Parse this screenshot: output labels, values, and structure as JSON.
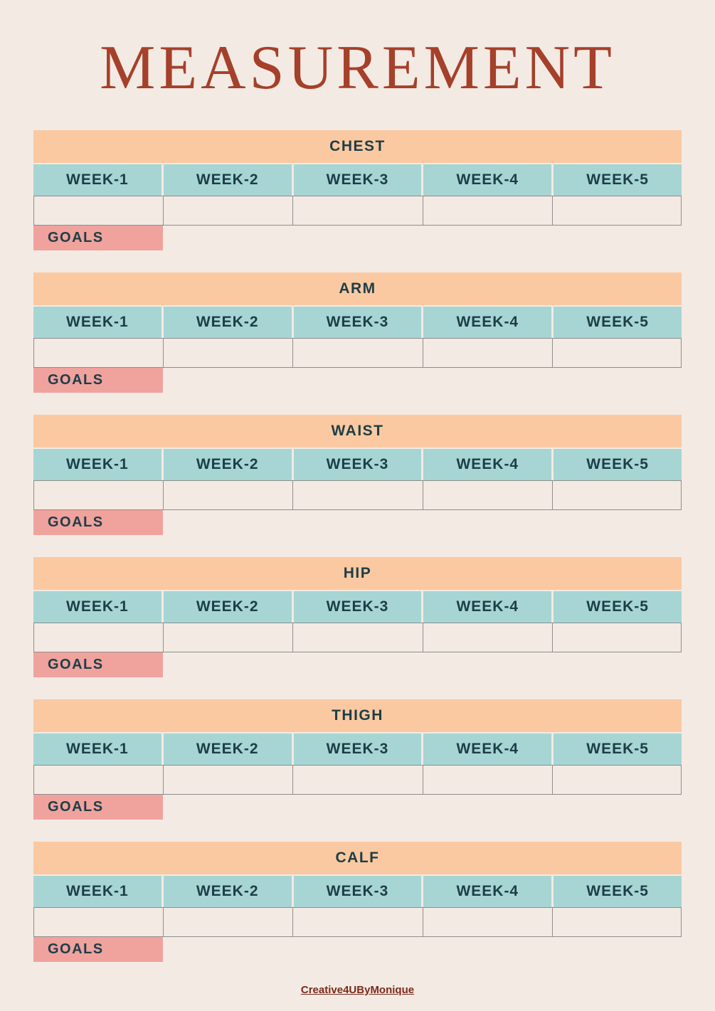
{
  "title": "MEASUREMENT",
  "week_labels": [
    "WEEK-1",
    "WEEK-2",
    "WEEK-3",
    "WEEK-4",
    "WEEK-5"
  ],
  "goals_label": "GOALS",
  "sections": [
    {
      "title": "CHEST",
      "values": [
        "",
        "",
        "",
        "",
        ""
      ],
      "goal": ""
    },
    {
      "title": "ARM",
      "values": [
        "",
        "",
        "",
        "",
        ""
      ],
      "goal": ""
    },
    {
      "title": "WAIST",
      "values": [
        "",
        "",
        "",
        "",
        ""
      ],
      "goal": ""
    },
    {
      "title": "HIP",
      "values": [
        "",
        "",
        "",
        "",
        ""
      ],
      "goal": ""
    },
    {
      "title": "THIGH",
      "values": [
        "",
        "",
        "",
        "",
        ""
      ],
      "goal": ""
    },
    {
      "title": "CALF",
      "values": [
        "",
        "",
        "",
        "",
        ""
      ],
      "goal": ""
    }
  ],
  "footer": {
    "credit": "Creative4UByMonique"
  },
  "colors": {
    "page-bg": "#f3eae3",
    "section-header-bg": "#fbc9a1",
    "week-header-bg": "#a6d5d4",
    "goals-bg": "#f0a29d",
    "dark-text": "#1d3d47",
    "title-text": "#a5402a",
    "footer-text": "#7a2a1a",
    "cell-border": "#8e8e8e"
  }
}
